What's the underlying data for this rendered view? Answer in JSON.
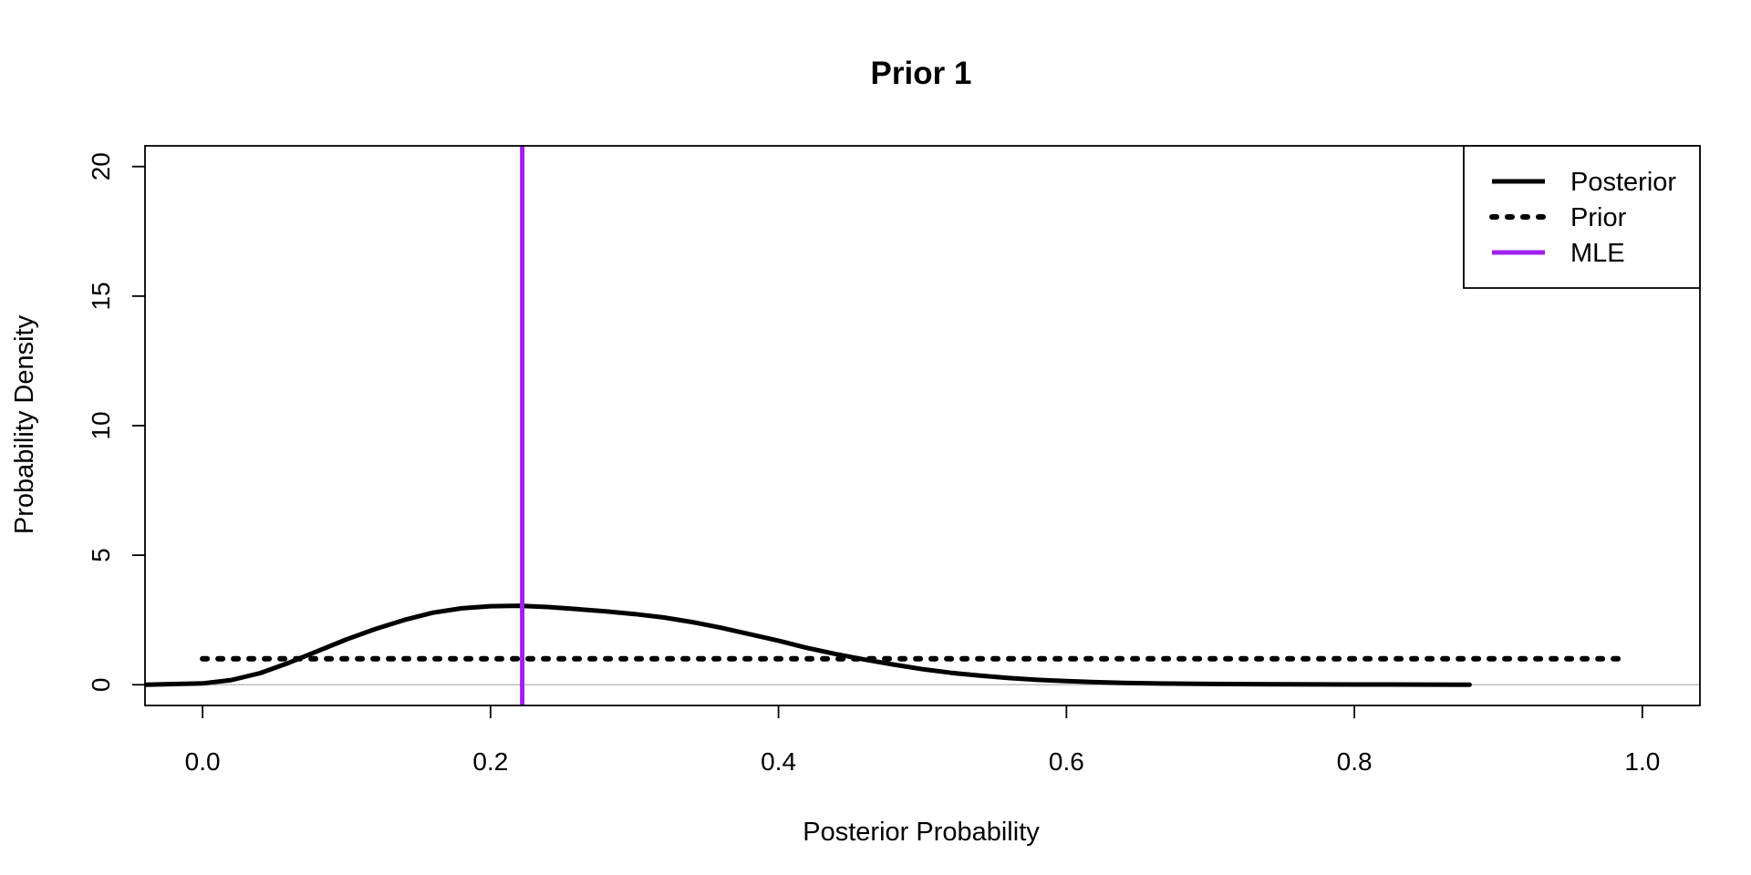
{
  "chart_data": {
    "type": "line",
    "title": "Prior 1",
    "xlabel": "Posterior Probability",
    "ylabel": "Probability Density",
    "xlim": [
      -0.04,
      1.04
    ],
    "ylim": [
      -0.8,
      20.8
    ],
    "xticks": [
      0.0,
      0.2,
      0.4,
      0.6,
      0.8,
      1.0
    ],
    "xtick_labels": [
      "0.0",
      "0.2",
      "0.4",
      "0.6",
      "0.8",
      "1.0"
    ],
    "yticks": [
      0,
      5,
      10,
      15,
      20
    ],
    "ytick_labels": [
      "0",
      "5",
      "10",
      "15",
      "20"
    ],
    "baseline": 0,
    "baseline_color": "#bdbdbd",
    "legend_position": "top-right",
    "series": [
      {
        "name": "Posterior",
        "style": "solid",
        "color": "#000000",
        "x": [
          -0.04,
          0.0,
          0.02,
          0.04,
          0.06,
          0.08,
          0.1,
          0.12,
          0.14,
          0.16,
          0.18,
          0.2,
          0.22,
          0.24,
          0.26,
          0.28,
          0.3,
          0.32,
          0.34,
          0.36,
          0.38,
          0.4,
          0.42,
          0.44,
          0.46,
          0.48,
          0.5,
          0.52,
          0.54,
          0.56,
          0.58,
          0.6,
          0.62,
          0.64,
          0.66,
          0.7,
          0.75,
          0.8,
          0.85,
          0.88
        ],
        "y": [
          0.0,
          0.05,
          0.18,
          0.45,
          0.85,
          1.3,
          1.75,
          2.15,
          2.5,
          2.78,
          2.95,
          3.03,
          3.05,
          3.0,
          2.92,
          2.83,
          2.73,
          2.6,
          2.42,
          2.2,
          1.95,
          1.7,
          1.42,
          1.18,
          0.97,
          0.78,
          0.6,
          0.46,
          0.35,
          0.26,
          0.19,
          0.14,
          0.1,
          0.07,
          0.05,
          0.03,
          0.015,
          0.008,
          0.004,
          0.003
        ]
      },
      {
        "name": "Prior",
        "style": "dotted",
        "color": "#000000",
        "x": [
          0.0,
          0.99
        ],
        "y": [
          1.0,
          1.0
        ]
      }
    ],
    "vlines": [
      {
        "name": "MLE",
        "x": 0.222,
        "color": "#a020f0"
      }
    ],
    "legend": [
      {
        "label": "Posterior",
        "style": "solid",
        "color": "#000000"
      },
      {
        "label": "Prior",
        "style": "dotted",
        "color": "#000000"
      },
      {
        "label": "MLE",
        "style": "solid",
        "color": "#a020f0"
      }
    ]
  }
}
